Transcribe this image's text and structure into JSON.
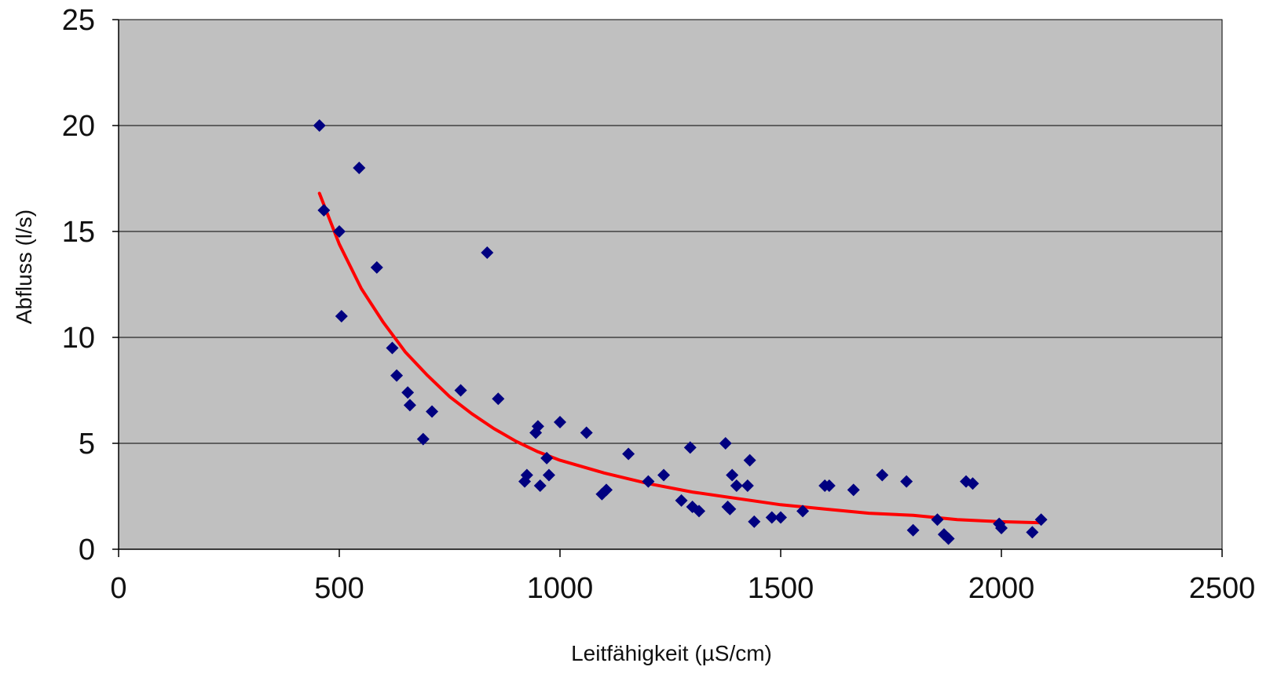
{
  "chart_data": {
    "type": "scatter",
    "title": "",
    "xlabel": "Leitfähigkeit (µS/cm)",
    "ylabel": "Abfluss (l/s)",
    "xlim": [
      0,
      2500
    ],
    "ylim": [
      0,
      25
    ],
    "xticks": [
      "0",
      "500",
      "1000",
      "1500",
      "2000",
      "2500"
    ],
    "yticks": [
      "0",
      "5",
      "10",
      "15",
      "20",
      "25"
    ],
    "grid": "horizontal",
    "legend": "none",
    "colors": {
      "plot_background": "#c0c0c0",
      "points": "#000080",
      "trend_line": "#ff0000",
      "grid": "#000000"
    },
    "series": [
      {
        "type": "scatter",
        "points": [
          [
            455,
            20
          ],
          [
            465,
            16
          ],
          [
            500,
            15
          ],
          [
            505,
            11
          ],
          [
            545,
            18
          ],
          [
            585,
            13.3
          ],
          [
            620,
            9.5
          ],
          [
            630,
            8.2
          ],
          [
            655,
            7.4
          ],
          [
            660,
            6.8
          ],
          [
            690,
            5.2
          ],
          [
            710,
            6.5
          ],
          [
            775,
            7.5
          ],
          [
            835,
            14
          ],
          [
            860,
            7.1
          ],
          [
            920,
            3.2
          ],
          [
            925,
            3.5
          ],
          [
            945,
            5.5
          ],
          [
            950,
            5.8
          ],
          [
            955,
            3.0
          ],
          [
            970,
            4.3
          ],
          [
            975,
            3.5
          ],
          [
            1000,
            6.0
          ],
          [
            1060,
            5.5
          ],
          [
            1095,
            2.6
          ],
          [
            1105,
            2.8
          ],
          [
            1155,
            4.5
          ],
          [
            1200,
            3.2
          ],
          [
            1235,
            3.5
          ],
          [
            1275,
            2.3
          ],
          [
            1295,
            4.8
          ],
          [
            1300,
            2.0
          ],
          [
            1315,
            1.8
          ],
          [
            1375,
            5.0
          ],
          [
            1380,
            2.0
          ],
          [
            1385,
            1.9
          ],
          [
            1390,
            3.5
          ],
          [
            1400,
            3.0
          ],
          [
            1425,
            3.0
          ],
          [
            1430,
            4.2
          ],
          [
            1440,
            1.3
          ],
          [
            1480,
            1.5
          ],
          [
            1500,
            1.5
          ],
          [
            1550,
            1.8
          ],
          [
            1600,
            3.0
          ],
          [
            1610,
            3.0
          ],
          [
            1665,
            2.8
          ],
          [
            1730,
            3.5
          ],
          [
            1785,
            3.2
          ],
          [
            1800,
            0.9
          ],
          [
            1855,
            1.4
          ],
          [
            1870,
            0.7
          ],
          [
            1880,
            0.5
          ],
          [
            1920,
            3.2
          ],
          [
            1935,
            3.1
          ],
          [
            1995,
            1.2
          ],
          [
            2000,
            1.0
          ],
          [
            2070,
            0.8
          ],
          [
            2090,
            1.4
          ]
        ]
      },
      {
        "type": "line",
        "points": [
          [
            455,
            16.8
          ],
          [
            500,
            14.4
          ],
          [
            550,
            12.3
          ],
          [
            600,
            10.7
          ],
          [
            650,
            9.3
          ],
          [
            700,
            8.2
          ],
          [
            750,
            7.2
          ],
          [
            800,
            6.4
          ],
          [
            850,
            5.7
          ],
          [
            900,
            5.1
          ],
          [
            950,
            4.6
          ],
          [
            1000,
            4.2
          ],
          [
            1100,
            3.6
          ],
          [
            1200,
            3.1
          ],
          [
            1300,
            2.7
          ],
          [
            1400,
            2.4
          ],
          [
            1500,
            2.1
          ],
          [
            1600,
            1.9
          ],
          [
            1700,
            1.7
          ],
          [
            1800,
            1.6
          ],
          [
            1900,
            1.4
          ],
          [
            2000,
            1.3
          ],
          [
            2090,
            1.25
          ]
        ]
      }
    ]
  }
}
